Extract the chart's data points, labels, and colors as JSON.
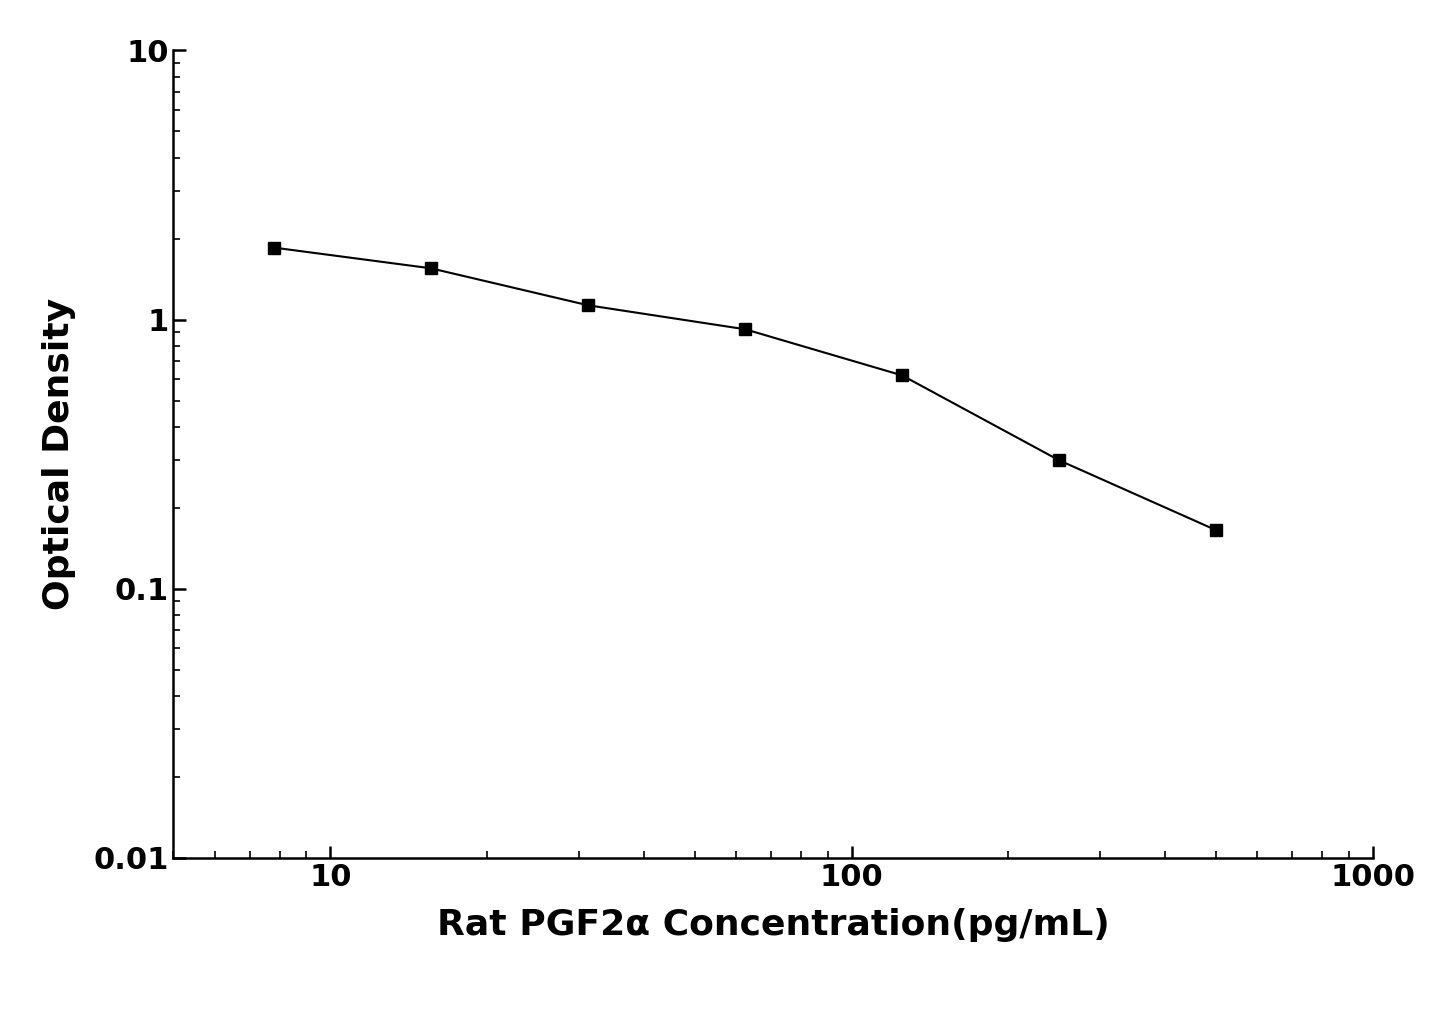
{
  "x": [
    7.8,
    15.6,
    31.2,
    62.5,
    125,
    250,
    500
  ],
  "y": [
    1.85,
    1.55,
    1.13,
    0.92,
    0.62,
    0.3,
    0.165
  ],
  "xlabel": "Rat PGF2α Concentration(pg/mL)",
  "ylabel": "Optical Density",
  "xlim": [
    5,
    1000
  ],
  "ylim": [
    0.01,
    10
  ],
  "line_color": "#000000",
  "marker": "s",
  "marker_size": 9,
  "marker_color": "#000000",
  "line_width": 1.5,
  "font_size_label": 26,
  "font_size_tick": 22,
  "background_color": "#ffffff"
}
